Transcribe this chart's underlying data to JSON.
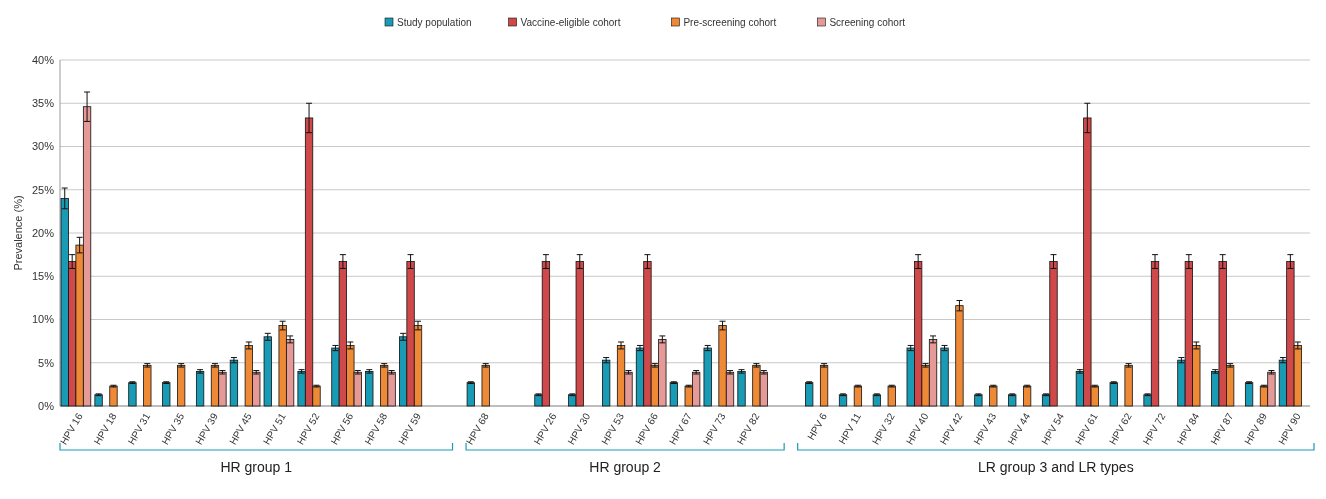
{
  "chart_data": {
    "type": "bar",
    "ylabel": "Prevalence (%)",
    "categories": [
      "HPV 16",
      "HPV 18",
      "HPV 31",
      "HPV 35",
      "HPV 39",
      "HPV 45",
      "HPV 51",
      "HPV 52",
      "HPV 56",
      "HPV 58",
      "HPV 59",
      null,
      "HPV 68",
      null,
      "HPV 26",
      "HPV 30",
      "HPV 53",
      "HPV 66",
      "HPV 67",
      "HPV 73",
      "HPV 82",
      null,
      "HPV 6",
      "HPV 11",
      "HPV 32",
      "HPV 40",
      "HPV 42",
      "HPV 43",
      "HPV 44",
      "HPV 54",
      "HPV 61",
      "HPV 62",
      "HPV 72",
      "HPV 84",
      "HPV 87",
      "HPV 89",
      "HPV 90"
    ],
    "series": [
      {
        "name": "Study population",
        "color": "#1a9bb5",
        "values": [
          24,
          1.3,
          2.7,
          2.7,
          4,
          5.3,
          8,
          4,
          6.7,
          4,
          8,
          null,
          2.7,
          null,
          1.3,
          1.3,
          5.3,
          6.7,
          2.7,
          6.7,
          4,
          null,
          2.7,
          1.3,
          1.3,
          6.7,
          6.7,
          1.3,
          1.3,
          1.3,
          4,
          2.7,
          1.3,
          5.3,
          4,
          2.7,
          5.3
        ],
        "errors": [
          1.2,
          0.1,
          0.1,
          0.1,
          0.2,
          0.3,
          0.4,
          0.2,
          0.3,
          0.2,
          0.4,
          null,
          0.1,
          null,
          0.1,
          0.1,
          0.3,
          0.3,
          0.1,
          0.3,
          0.2,
          null,
          0.1,
          0.1,
          0.1,
          0.3,
          0.3,
          0.1,
          0.1,
          0.1,
          0.2,
          0.1,
          0.1,
          0.3,
          0.2,
          0.1,
          0.3
        ]
      },
      {
        "name": "Vaccine-eligible cohort",
        "color": "#d0494a",
        "values": [
          16.7,
          null,
          null,
          null,
          null,
          null,
          null,
          33.3,
          16.7,
          null,
          16.7,
          null,
          null,
          null,
          16.7,
          16.7,
          null,
          16.7,
          null,
          null,
          null,
          null,
          null,
          null,
          null,
          16.7,
          null,
          null,
          null,
          16.7,
          33.3,
          null,
          16.7,
          16.7,
          16.7,
          null,
          16.7
        ],
        "errors": [
          0.8,
          null,
          null,
          null,
          null,
          null,
          null,
          1.7,
          0.8,
          null,
          0.8,
          null,
          null,
          null,
          0.8,
          0.8,
          null,
          0.8,
          null,
          null,
          null,
          null,
          null,
          null,
          null,
          0.8,
          null,
          null,
          null,
          0.8,
          1.7,
          null,
          0.8,
          0.8,
          0.8,
          null,
          0.8
        ]
      },
      {
        "name": "Pre-screening cohort",
        "color": "#ee8a35",
        "values": [
          18.6,
          2.3,
          4.7,
          4.7,
          4.7,
          7,
          9.3,
          2.3,
          7,
          4.7,
          9.3,
          null,
          4.7,
          null,
          null,
          null,
          7,
          4.7,
          2.3,
          9.3,
          4.7,
          null,
          4.7,
          2.3,
          2.3,
          4.7,
          11.6,
          2.3,
          2.3,
          null,
          2.3,
          4.7,
          null,
          7,
          4.7,
          2.3,
          7
        ],
        "errors": [
          0.9,
          0.1,
          0.2,
          0.2,
          0.2,
          0.4,
          0.5,
          0.1,
          0.4,
          0.2,
          0.5,
          null,
          0.2,
          null,
          null,
          null,
          0.4,
          0.2,
          0.1,
          0.5,
          0.2,
          null,
          0.2,
          0.1,
          0.1,
          0.2,
          0.6,
          0.1,
          0.1,
          null,
          0.1,
          0.2,
          null,
          0.4,
          0.2,
          0.1,
          0.4
        ]
      },
      {
        "name": "Screening cohort",
        "color": "#e59a98",
        "values": [
          34.6,
          null,
          null,
          null,
          3.9,
          3.9,
          7.7,
          null,
          3.9,
          3.9,
          null,
          null,
          null,
          null,
          null,
          null,
          3.9,
          7.7,
          3.9,
          3.9,
          3.9,
          null,
          null,
          null,
          null,
          7.7,
          null,
          null,
          null,
          null,
          null,
          null,
          null,
          null,
          null,
          3.9,
          null
        ],
        "errors": [
          1.7,
          null,
          null,
          null,
          0.2,
          0.2,
          0.4,
          null,
          0.2,
          0.2,
          null,
          null,
          null,
          null,
          null,
          null,
          0.2,
          0.4,
          0.2,
          0.2,
          0.2,
          null,
          null,
          null,
          null,
          0.4,
          null,
          null,
          null,
          null,
          null,
          null,
          null,
          null,
          null,
          0.2,
          null
        ]
      }
    ],
    "ylim": [
      0,
      40
    ],
    "yticks": [
      {
        "value": 0,
        "label": "0%"
      },
      {
        "value": 5,
        "label": "5%"
      },
      {
        "value": 10,
        "label": "10%"
      },
      {
        "value": 15,
        "label": "15%"
      },
      {
        "value": 20,
        "label": "20%"
      },
      {
        "value": 25,
        "label": "25%"
      },
      {
        "value": 30,
        "label": "30%"
      },
      {
        "value": 35,
        "label": "35%"
      },
      {
        "value": 40,
        "label": "40%"
      }
    ],
    "grid": "y",
    "legend": "top",
    "annotations": [
      "HR group 1",
      "HR group 2",
      "LR group 3 and LR types"
    ]
  }
}
